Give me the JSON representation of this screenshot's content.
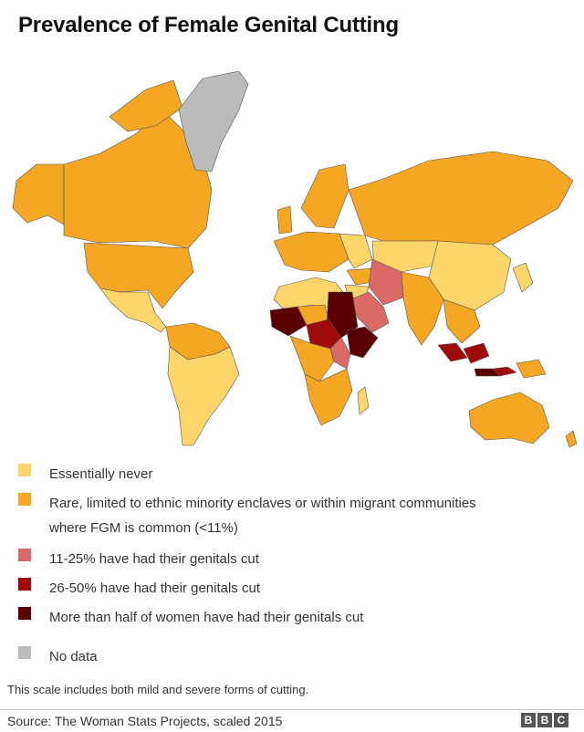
{
  "title": "Prevalence of Female Genital Cutting",
  "colors": {
    "essentially_never": "#fdd56a",
    "rare": "#f5a623",
    "pct_11_25": "#d96a66",
    "pct_26_50": "#9e0a0a",
    "more_than_half": "#5a0000",
    "no_data": "#bbbbbb",
    "ocean": "#ffffff",
    "border": "#555555"
  },
  "legend": [
    {
      "key": "essentially_never",
      "label_lines": [
        "Essentially never"
      ],
      "color": "#fdd56a"
    },
    {
      "key": "rare",
      "label_lines": [
        "Rare, limited to ethnic minority enclaves or within migrant communities",
        "where FGM is common (<11%)"
      ],
      "color": "#f5a623"
    },
    {
      "key": "pct_11_25",
      "label_lines": [
        "11-25% have had their genitals cut"
      ],
      "color": "#d96a66"
    },
    {
      "key": "pct_26_50",
      "label_lines": [
        "26-50% have had their genitals cut"
      ],
      "color": "#9e0a0a"
    },
    {
      "key": "more_than_half",
      "label_lines": [
        "More than half of women have had their genitals cut"
      ],
      "color": "#5a0000"
    },
    {
      "key": "no_data",
      "label_lines": [
        "No data"
      ],
      "color": "#bbbbbb"
    }
  ],
  "note": "This scale includes both mild and severe forms of cutting.",
  "source": "Source: The Woman Stats Projects, scaled 2015",
  "logo": {
    "letters": [
      "B",
      "B",
      "C"
    ]
  }
}
